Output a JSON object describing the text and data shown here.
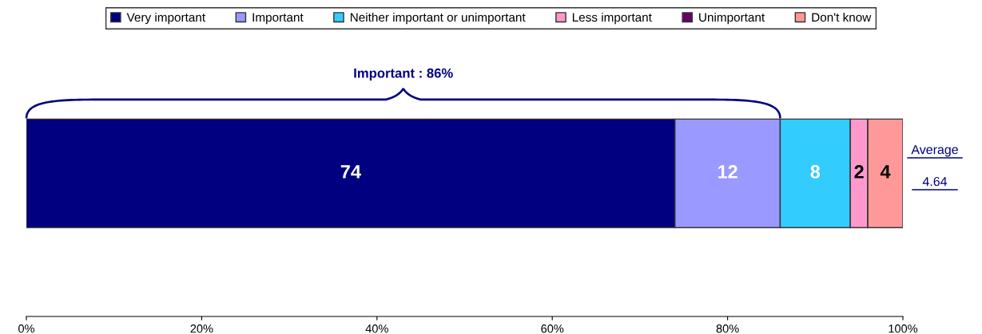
{
  "chart_data": {
    "type": "bar",
    "orientation": "horizontal",
    "stacked": true,
    "categories": [
      null
    ],
    "series": [
      {
        "name": "Very important",
        "color": "#000080",
        "values": [
          74
        ],
        "value_labels": [
          "74"
        ]
      },
      {
        "name": "Important",
        "color": "#9999ff",
        "values": [
          12
        ],
        "value_labels": [
          "12"
        ]
      },
      {
        "name": "Neither important or unimportant",
        "color": "#33ccff",
        "values": [
          8
        ],
        "value_labels": [
          "8"
        ]
      },
      {
        "name": "Less important",
        "color": "#ff99cc",
        "values": [
          2
        ],
        "value_labels": [
          "2"
        ]
      },
      {
        "name": "Unimportant",
        "color": "#660066",
        "values": [
          0
        ],
        "value_labels": [
          null
        ]
      },
      {
        "name": "Don't know",
        "color": "#ff9999",
        "values": [
          4
        ],
        "value_labels": [
          "4"
        ]
      }
    ],
    "xlim": [
      0,
      100
    ],
    "xticks": [
      {
        "value": 0,
        "label": "0%"
      },
      {
        "value": 20,
        "label": "20%"
      },
      {
        "value": 40,
        "label": "40%"
      },
      {
        "value": 60,
        "label": "60%"
      },
      {
        "value": 80,
        "label": "80%"
      },
      {
        "value": 100,
        "label": "100%"
      }
    ],
    "tick_labels": "x",
    "grid": false,
    "legend": "top",
    "annotations": [
      "Important : 86%",
      "Average",
      "4.64"
    ]
  }
}
